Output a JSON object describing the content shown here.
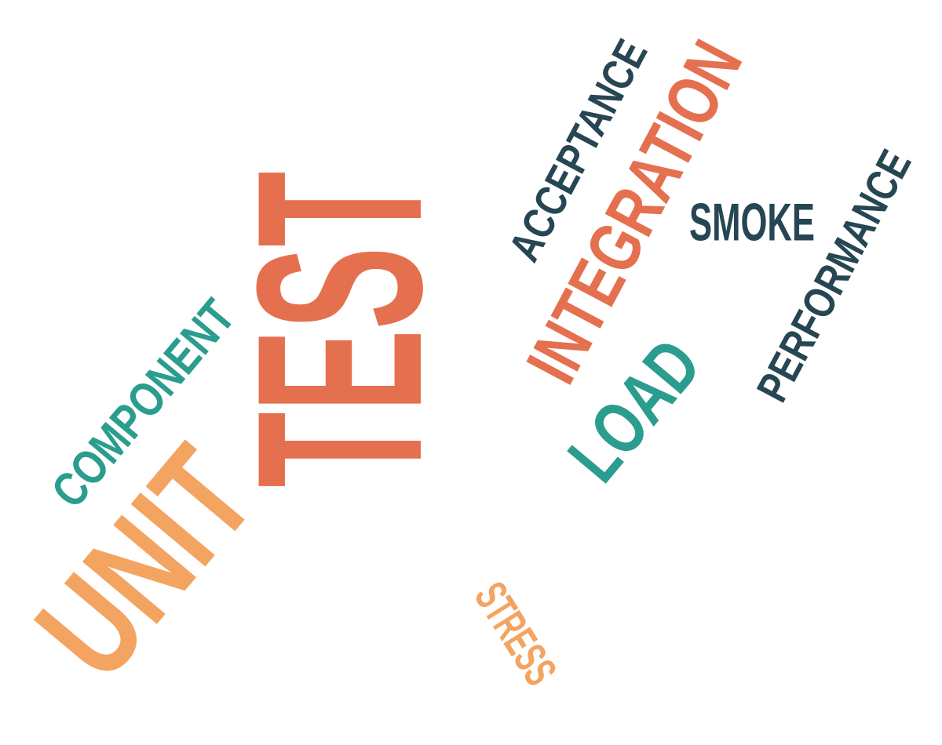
{
  "colors": {
    "coral": "#E5704F",
    "orange": "#F4A461",
    "teal": "#2A9D8F",
    "navy": "#264653",
    "background": "#ffffff"
  },
  "words": {
    "test": "TEST",
    "unit": "UNIT",
    "component": "COMPONENT",
    "integration": "INTEGRATION",
    "acceptance": "ACCEPTANCE",
    "smoke": "SMOKE",
    "performance": "PERFORMANCE",
    "load": "LOAD",
    "stress": "STRESS"
  }
}
